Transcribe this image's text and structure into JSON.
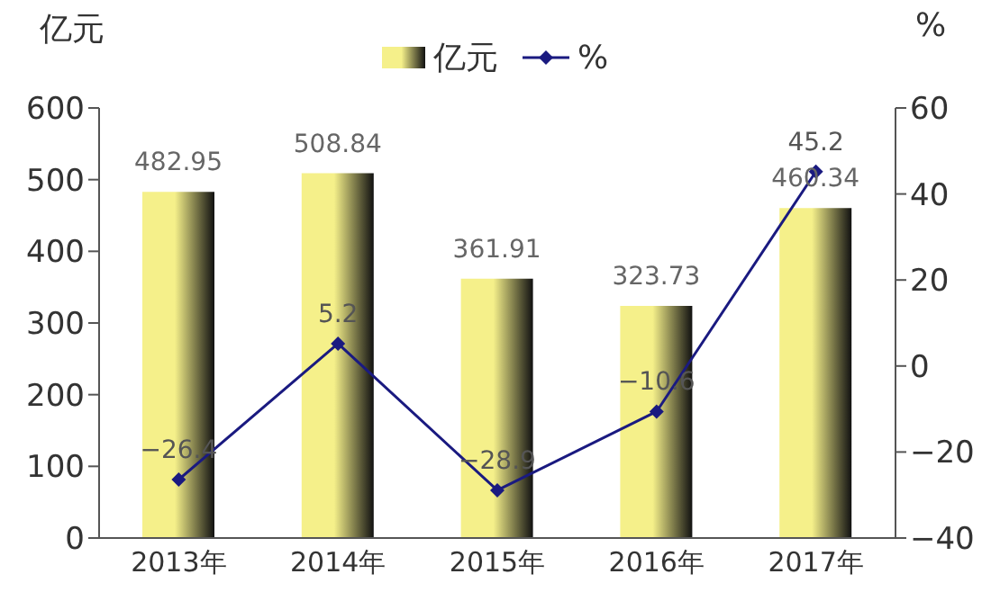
{
  "chart_data": {
    "type": "bar",
    "ylabel": "亿元",
    "y2label": "%",
    "categories": [
      "2013年",
      "2014年",
      "2015年",
      "2016年",
      "2017年"
    ],
    "series": [
      {
        "name": "亿元",
        "color": "#f5f08a",
        "values": [
          482.95,
          508.84,
          361.91,
          323.73,
          460.34
        ],
        "value_labels": [
          "482.95",
          "508.84",
          "361.91",
          "323.73",
          "460.34"
        ]
      },
      {
        "name": "%",
        "type": "line",
        "axis": "y2",
        "color": "#1a1a80",
        "marker": "diamond",
        "values": [
          -26.4,
          5.2,
          -28.9,
          -10.6,
          45.2
        ],
        "value_labels": [
          "−26.4",
          "5.2",
          "−28.9",
          "−10.6",
          "45.2"
        ]
      }
    ],
    "ylim": [
      0,
      600
    ],
    "yticks": [
      0,
      100,
      200,
      300,
      400,
      500,
      600
    ],
    "y2lim": [
      -40,
      60
    ],
    "y2ticks": [
      -40,
      -20,
      0,
      20,
      40,
      60
    ],
    "grid": false,
    "legend": "top"
  }
}
